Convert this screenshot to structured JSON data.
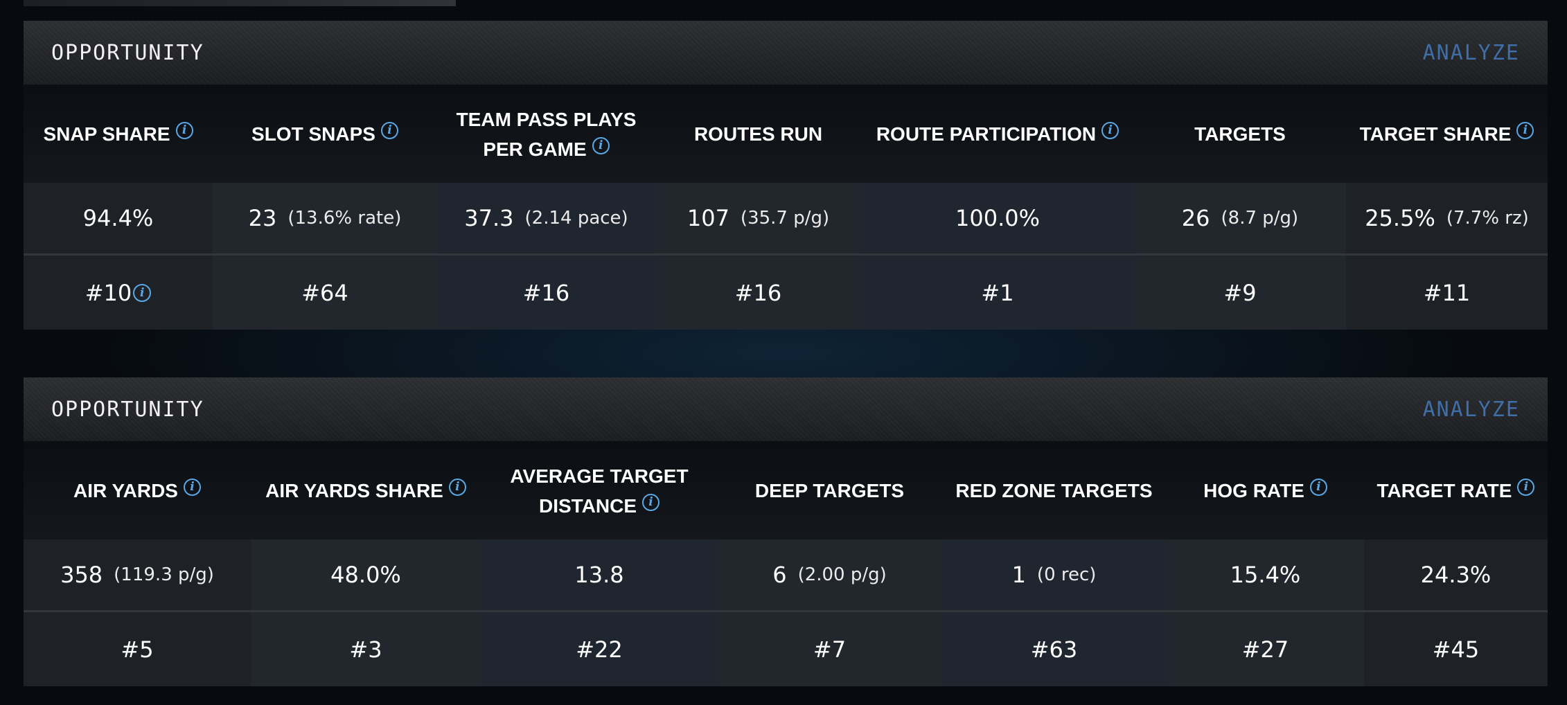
{
  "panels": [
    {
      "title": "OPPORTUNITY",
      "action": "ANALYZE",
      "columns": [
        {
          "header": "SNAP SHARE",
          "info": true,
          "value": "94.4%",
          "sub": "",
          "rank": "#10",
          "rank_info": true
        },
        {
          "header": "SLOT SNAPS",
          "info": true,
          "value": "23",
          "sub": "(13.6% rate)",
          "rank": "#64",
          "rank_info": false
        },
        {
          "header": "TEAM PASS PLAYS PER GAME",
          "info": true,
          "value": "37.3",
          "sub": "(2.14 pace)",
          "rank": "#16",
          "rank_info": false
        },
        {
          "header": "ROUTES RUN",
          "info": false,
          "value": "107",
          "sub": "(35.7 p/g)",
          "rank": "#16",
          "rank_info": false
        },
        {
          "header": "ROUTE PARTICIPATION",
          "info": true,
          "value": "100.0%",
          "sub": "",
          "rank": "#1",
          "rank_info": false
        },
        {
          "header": "TARGETS",
          "info": false,
          "value": "26",
          "sub": "(8.7 p/g)",
          "rank": "#9",
          "rank_info": false
        },
        {
          "header": "TARGET SHARE",
          "info": true,
          "value": "25.5%",
          "sub": "(7.7% rz)",
          "rank": "#11",
          "rank_info": false
        }
      ]
    },
    {
      "title": "OPPORTUNITY",
      "action": "ANALYZE",
      "columns": [
        {
          "header": "AIR YARDS",
          "info": true,
          "value": "358",
          "sub": "(119.3 p/g)",
          "rank": "#5",
          "rank_info": false
        },
        {
          "header": "AIR YARDS SHARE",
          "info": true,
          "value": "48.0%",
          "sub": "",
          "rank": "#3",
          "rank_info": false
        },
        {
          "header": "AVERAGE TARGET DISTANCE",
          "info": true,
          "value": "13.8",
          "sub": "",
          "rank": "#22",
          "rank_info": false
        },
        {
          "header": "DEEP TARGETS",
          "info": false,
          "value": "6",
          "sub": "(2.00 p/g)",
          "rank": "#7",
          "rank_info": false
        },
        {
          "header": "RED ZONE TARGETS",
          "info": false,
          "value": "1",
          "sub": "(0 rec)",
          "rank": "#63",
          "rank_info": false
        },
        {
          "header": "HOG RATE",
          "info": true,
          "value": "15.4%",
          "sub": "",
          "rank": "#27",
          "rank_info": false
        },
        {
          "header": "TARGET RATE",
          "info": true,
          "value": "24.3%",
          "sub": "",
          "rank": "#45",
          "rank_info": false
        }
      ]
    }
  ],
  "icons": {
    "info": "info-circle-icon",
    "info_glyph": "i",
    "accent": "#5aa9e6",
    "action_color": "#3f6ea8"
  }
}
